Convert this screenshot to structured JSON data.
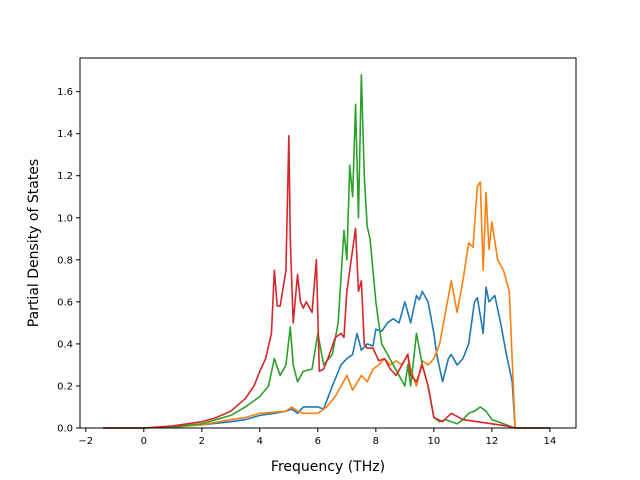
{
  "chart_data": {
    "type": "line",
    "title": "",
    "xlabel": "Frequency (THz)",
    "ylabel": "Partial Density of States",
    "xlim": [
      -2.2,
      14.9
    ],
    "ylim": [
      0.0,
      1.76
    ],
    "xticks": [
      -2,
      0,
      2,
      4,
      6,
      8,
      10,
      12,
      14
    ],
    "xtick_labels": [
      "−2",
      "0",
      "2",
      "4",
      "6",
      "8",
      "10",
      "12",
      "14"
    ],
    "yticks": [
      0.0,
      0.2,
      0.4,
      0.6,
      0.8,
      1.0,
      1.2,
      1.4,
      1.6
    ],
    "ytick_labels": [
      "0.0",
      "0.2",
      "0.4",
      "0.6",
      "0.8",
      "1.0",
      "1.2",
      "1.4",
      "1.6"
    ],
    "grid": false,
    "legend": "none",
    "series": [
      {
        "color": "#1f77b4",
        "x": [
          -1.4,
          0.0,
          1.0,
          2.0,
          3.0,
          3.5,
          4.0,
          4.5,
          4.9,
          5.1,
          5.3,
          5.5,
          6.0,
          6.2,
          6.5,
          6.8,
          7.0,
          7.2,
          7.35,
          7.5,
          7.7,
          7.9,
          8.0,
          8.2,
          8.4,
          8.6,
          8.8,
          9.0,
          9.2,
          9.4,
          9.5,
          9.6,
          9.8,
          10.0,
          10.1,
          10.3,
          10.5,
          10.6,
          10.8,
          11.0,
          11.2,
          11.4,
          11.5,
          11.7,
          11.8,
          11.9,
          12.1,
          12.3,
          12.5,
          12.7,
          12.8,
          14.0
        ],
        "y": [
          0.0,
          0.0,
          0.005,
          0.015,
          0.03,
          0.04,
          0.06,
          0.07,
          0.08,
          0.09,
          0.07,
          0.1,
          0.1,
          0.09,
          0.2,
          0.3,
          0.33,
          0.35,
          0.45,
          0.37,
          0.4,
          0.39,
          0.47,
          0.46,
          0.5,
          0.52,
          0.5,
          0.6,
          0.5,
          0.63,
          0.61,
          0.65,
          0.6,
          0.45,
          0.35,
          0.22,
          0.33,
          0.35,
          0.3,
          0.33,
          0.4,
          0.6,
          0.62,
          0.45,
          0.67,
          0.6,
          0.63,
          0.5,
          0.35,
          0.22,
          0.0,
          0.0
        ]
      },
      {
        "color": "#ff7f0e",
        "x": [
          -1.4,
          0.0,
          1.0,
          2.0,
          3.0,
          3.5,
          4.0,
          4.5,
          4.9,
          5.1,
          5.3,
          5.5,
          6.0,
          6.3,
          6.6,
          6.8,
          7.0,
          7.2,
          7.5,
          7.7,
          7.9,
          8.1,
          8.3,
          8.5,
          8.7,
          8.9,
          9.1,
          9.2,
          9.4,
          9.6,
          9.8,
          10.0,
          10.2,
          10.4,
          10.6,
          10.8,
          11.0,
          11.2,
          11.35,
          11.5,
          11.6,
          11.7,
          11.8,
          11.9,
          12.0,
          12.2,
          12.4,
          12.6,
          12.8,
          14.0
        ],
        "y": [
          0.0,
          0.0,
          0.005,
          0.015,
          0.04,
          0.05,
          0.07,
          0.075,
          0.08,
          0.1,
          0.08,
          0.07,
          0.07,
          0.1,
          0.15,
          0.2,
          0.25,
          0.18,
          0.25,
          0.22,
          0.28,
          0.3,
          0.33,
          0.3,
          0.32,
          0.3,
          0.35,
          0.28,
          0.2,
          0.32,
          0.3,
          0.33,
          0.4,
          0.55,
          0.7,
          0.55,
          0.7,
          0.88,
          0.86,
          1.15,
          1.17,
          0.75,
          1.12,
          0.85,
          0.98,
          0.8,
          0.75,
          0.65,
          0.0,
          0.0
        ]
      },
      {
        "color": "#2ca02c",
        "x": [
          -1.4,
          0.0,
          1.0,
          2.0,
          3.0,
          3.5,
          4.0,
          4.3,
          4.5,
          4.7,
          4.9,
          5.05,
          5.15,
          5.3,
          5.5,
          5.8,
          6.0,
          6.2,
          6.5,
          6.7,
          6.9,
          7.0,
          7.1,
          7.2,
          7.3,
          7.4,
          7.5,
          7.6,
          7.7,
          7.8,
          8.0,
          8.2,
          8.4,
          8.6,
          8.8,
          9.0,
          9.1,
          9.2,
          9.4,
          9.6,
          9.8,
          10.0,
          10.2,
          10.4,
          10.6,
          10.8,
          11.0,
          11.2,
          11.4,
          11.6,
          11.8,
          12.0,
          12.4,
          12.8,
          14.0
        ],
        "y": [
          0.0,
          0.0,
          0.005,
          0.02,
          0.06,
          0.1,
          0.15,
          0.2,
          0.33,
          0.25,
          0.3,
          0.48,
          0.3,
          0.22,
          0.27,
          0.28,
          0.45,
          0.3,
          0.35,
          0.5,
          0.94,
          0.8,
          1.25,
          1.1,
          1.54,
          1.0,
          1.68,
          1.2,
          0.96,
          0.9,
          0.6,
          0.4,
          0.35,
          0.3,
          0.25,
          0.2,
          0.3,
          0.2,
          0.45,
          0.3,
          0.2,
          0.05,
          0.03,
          0.04,
          0.03,
          0.02,
          0.04,
          0.07,
          0.08,
          0.1,
          0.08,
          0.04,
          0.02,
          0.0,
          0.0
        ]
      },
      {
        "color": "#d62728",
        "x": [
          -1.4,
          0.0,
          1.0,
          2.0,
          2.5,
          3.0,
          3.5,
          3.8,
          4.0,
          4.2,
          4.4,
          4.5,
          4.6,
          4.7,
          4.9,
          5.0,
          5.05,
          5.15,
          5.3,
          5.4,
          5.5,
          5.6,
          5.8,
          5.95,
          6.05,
          6.2,
          6.4,
          6.6,
          6.8,
          6.9,
          7.0,
          7.1,
          7.3,
          7.4,
          7.5,
          7.6,
          7.7,
          7.9,
          8.1,
          8.3,
          8.5,
          8.7,
          8.9,
          9.1,
          9.2,
          9.4,
          9.6,
          9.8,
          10.0,
          10.3,
          10.6,
          11.0,
          11.5,
          12.0,
          12.5,
          12.8,
          14.0
        ],
        "y": [
          0.0,
          0.0,
          0.01,
          0.03,
          0.05,
          0.08,
          0.14,
          0.2,
          0.27,
          0.33,
          0.45,
          0.75,
          0.58,
          0.58,
          0.75,
          1.39,
          0.9,
          0.5,
          0.73,
          0.6,
          0.57,
          0.6,
          0.55,
          0.8,
          0.27,
          0.28,
          0.35,
          0.43,
          0.45,
          0.43,
          0.65,
          0.75,
          0.95,
          0.65,
          0.7,
          0.4,
          0.38,
          0.38,
          0.32,
          0.33,
          0.28,
          0.25,
          0.3,
          0.35,
          0.25,
          0.22,
          0.3,
          0.2,
          0.05,
          0.03,
          0.07,
          0.04,
          0.03,
          0.02,
          0.01,
          0.0,
          0.0
        ]
      }
    ]
  }
}
